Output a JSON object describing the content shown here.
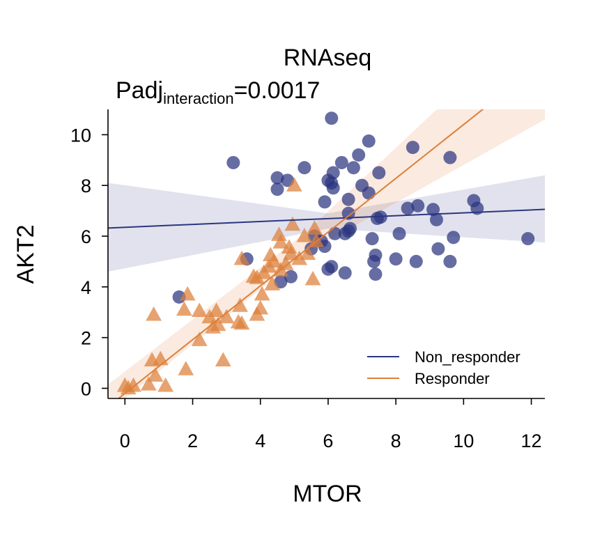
{
  "chart_data": {
    "type": "scatter",
    "title": "RNAseq",
    "subtitle": {
      "prefix": "Padj",
      "subscript": "interaction",
      "suffix": "=0.0017"
    },
    "xlabel": "MTOR",
    "ylabel": "AKT2",
    "xlim": [
      -0.5,
      12.4
    ],
    "ylim": [
      -0.4,
      11.0
    ],
    "xticks": [
      0,
      2,
      4,
      6,
      8,
      10,
      12
    ],
    "yticks": [
      0,
      2,
      4,
      6,
      8,
      10
    ],
    "grid": false,
    "legend_position": "bottom-right",
    "series": [
      {
        "name": "Non_responder",
        "color": "#2b3580",
        "marker": "circle",
        "fit": {
          "intercept": 6.35,
          "slope": 0.057
        },
        "ci_band": [
          [
            -0.5,
            4.6,
            8.1
          ],
          [
            6.0,
            6.3,
            6.9
          ],
          [
            12.4,
            5.75,
            8.4
          ]
        ],
        "points": [
          [
            1.6,
            3.6
          ],
          [
            3.2,
            8.9
          ],
          [
            3.6,
            5.1
          ],
          [
            4.5,
            8.3
          ],
          [
            4.5,
            7.85
          ],
          [
            4.8,
            8.2
          ],
          [
            4.6,
            4.2
          ],
          [
            4.9,
            4.4
          ],
          [
            5.3,
            8.7
          ],
          [
            5.5,
            5.5
          ],
          [
            5.6,
            6.0
          ],
          [
            5.8,
            5.8
          ],
          [
            5.9,
            5.6
          ],
          [
            5.9,
            7.35
          ],
          [
            6.0,
            8.2
          ],
          [
            6.1,
            8.1
          ],
          [
            6.15,
            8.5
          ],
          [
            6.15,
            7.9
          ],
          [
            6.1,
            10.65
          ],
          [
            6.0,
            4.7
          ],
          [
            6.1,
            4.8
          ],
          [
            6.2,
            6.1
          ],
          [
            6.4,
            8.9
          ],
          [
            6.5,
            4.55
          ],
          [
            6.5,
            6.1
          ],
          [
            6.6,
            6.2
          ],
          [
            6.6,
            6.9
          ],
          [
            6.65,
            6.3
          ],
          [
            6.6,
            7.45
          ],
          [
            6.75,
            8.7
          ],
          [
            6.9,
            9.2
          ],
          [
            7.0,
            8.0
          ],
          [
            7.2,
            7.7
          ],
          [
            7.2,
            9.75
          ],
          [
            7.3,
            5.9
          ],
          [
            7.35,
            5.0
          ],
          [
            7.4,
            5.25
          ],
          [
            7.4,
            4.5
          ],
          [
            7.45,
            6.7
          ],
          [
            7.55,
            6.75
          ],
          [
            7.5,
            8.5
          ],
          [
            8.0,
            5.1
          ],
          [
            8.1,
            6.1
          ],
          [
            8.35,
            7.1
          ],
          [
            8.5,
            9.5
          ],
          [
            8.6,
            5.0
          ],
          [
            8.65,
            7.2
          ],
          [
            9.1,
            7.05
          ],
          [
            9.2,
            6.65
          ],
          [
            9.25,
            5.5
          ],
          [
            9.6,
            9.1
          ],
          [
            9.6,
            5.0
          ],
          [
            9.7,
            5.95
          ],
          [
            10.3,
            7.4
          ],
          [
            10.4,
            7.1
          ],
          [
            11.9,
            5.9
          ]
        ]
      },
      {
        "name": "Responder",
        "color": "#dd7f3a",
        "marker": "triangle",
        "fit": {
          "intercept": -0.2,
          "slope": 1.06
        },
        "ci_band": [
          [
            -0.5,
            -0.95,
            0.15
          ],
          [
            5.3,
            5.3,
            6.1
          ],
          [
            12.4,
            10.6,
            15.0
          ]
        ],
        "points": [
          [
            0.0,
            0.1
          ],
          [
            0.1,
            0.0
          ],
          [
            0.25,
            0.1
          ],
          [
            0.7,
            0.15
          ],
          [
            1.2,
            0.1
          ],
          [
            0.8,
            1.1
          ],
          [
            0.9,
            0.5
          ],
          [
            1.05,
            1.15
          ],
          [
            0.85,
            2.9
          ],
          [
            1.8,
            0.75
          ],
          [
            1.75,
            3.1
          ],
          [
            1.85,
            3.7
          ],
          [
            2.2,
            3.05
          ],
          [
            2.2,
            1.9
          ],
          [
            2.5,
            2.8
          ],
          [
            2.6,
            2.4
          ],
          [
            2.75,
            2.5
          ],
          [
            2.7,
            3.05
          ],
          [
            2.9,
            1.1
          ],
          [
            3.0,
            2.8
          ],
          [
            3.35,
            2.6
          ],
          [
            3.4,
            3.25
          ],
          [
            3.45,
            2.55
          ],
          [
            3.45,
            5.1
          ],
          [
            3.8,
            4.4
          ],
          [
            3.9,
            4.35
          ],
          [
            3.9,
            2.9
          ],
          [
            4.0,
            3.15
          ],
          [
            4.05,
            3.7
          ],
          [
            4.1,
            4.55
          ],
          [
            4.25,
            4.8
          ],
          [
            4.3,
            5.25
          ],
          [
            4.35,
            4.1
          ],
          [
            4.4,
            5.0
          ],
          [
            4.6,
            4.65
          ],
          [
            4.55,
            6.05
          ],
          [
            4.6,
            5.75
          ],
          [
            4.75,
            4.9
          ],
          [
            4.85,
            5.55
          ],
          [
            4.9,
            5.3
          ],
          [
            4.95,
            6.45
          ],
          [
            5.0,
            8.0
          ],
          [
            5.15,
            5.1
          ],
          [
            5.3,
            6.0
          ],
          [
            5.4,
            5.3
          ],
          [
            5.55,
            4.3
          ],
          [
            5.6,
            6.3
          ],
          [
            5.65,
            5.8
          ]
        ]
      }
    ]
  }
}
